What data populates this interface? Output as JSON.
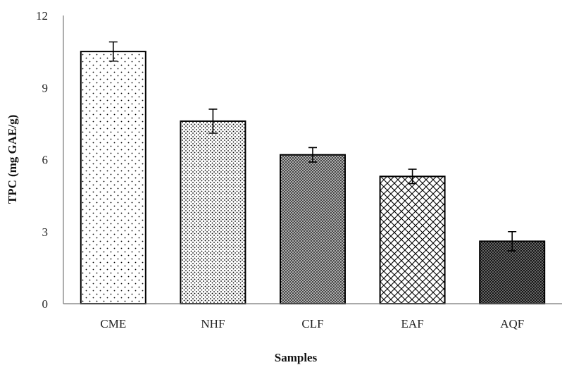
{
  "chart_data": {
    "type": "bar",
    "title": "",
    "xlabel": "Samples",
    "ylabel": "TPC (mg  GAE/g)",
    "categories": [
      "CME",
      "NHF",
      "CLF",
      "EAF",
      "AQF"
    ],
    "values": [
      10.5,
      7.6,
      6.2,
      5.3,
      2.6
    ],
    "errors": [
      0.4,
      0.5,
      0.3,
      0.3,
      0.4
    ],
    "patterns": [
      "sparse-dots",
      "dense-dots",
      "fine-crosshatch",
      "diamond-crosshatch",
      "dense-crosshatch"
    ],
    "ylim": [
      0,
      12
    ],
    "yticks": [
      "0",
      "3",
      "6",
      "9",
      "12"
    ],
    "grid": false,
    "legend": "none"
  }
}
